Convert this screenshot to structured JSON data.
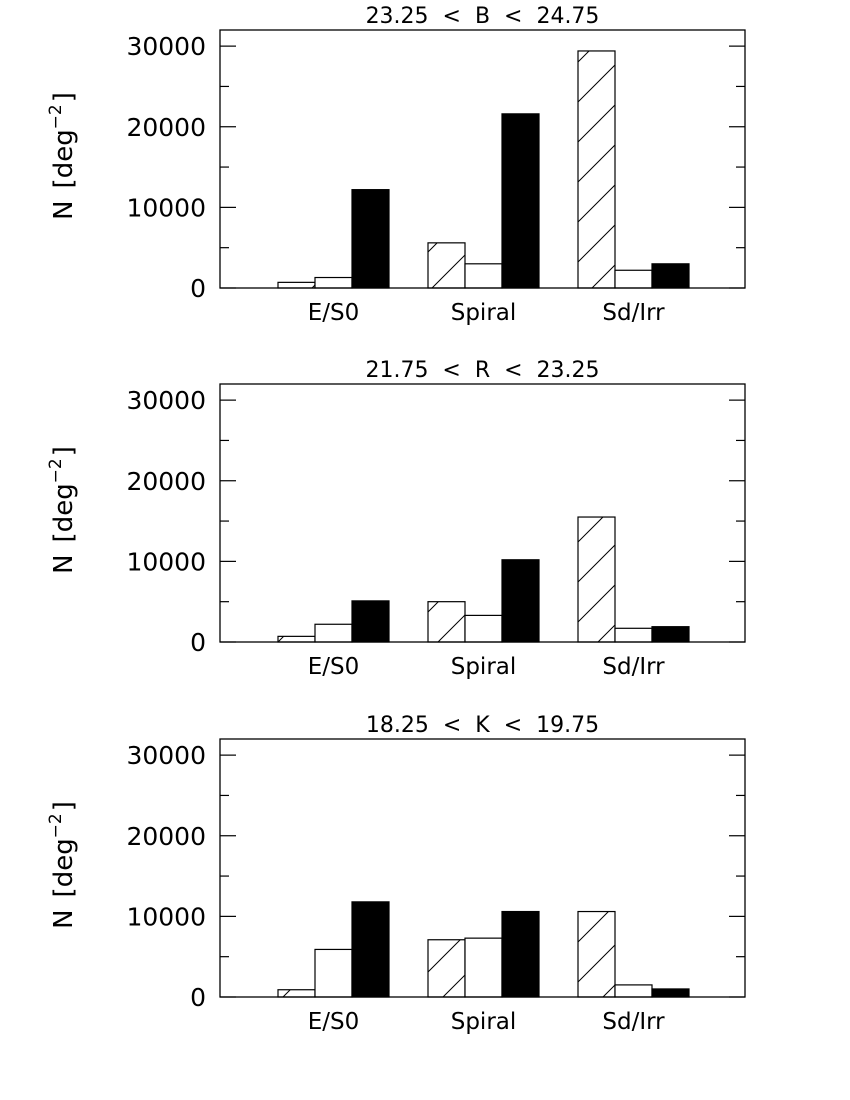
{
  "chart_data": [
    {
      "type": "bar",
      "title": "23.25  <  B  <  24.75",
      "ylabel_main": "N",
      "ylabel_unit_open": "[deg",
      "ylabel_exponent": "−2",
      "ylabel_unit_close": "]",
      "ylim": [
        0,
        32000
      ],
      "yticks_major": [
        0,
        10000,
        20000,
        30000
      ],
      "categories": [
        "E/S0",
        "Spiral",
        "Sd/Irr"
      ],
      "series": [
        {
          "fill": "hatched",
          "values": [
            700,
            5600,
            29400
          ]
        },
        {
          "fill": "open",
          "values": [
            1300,
            3000,
            2200
          ]
        },
        {
          "fill": "solid",
          "values": [
            12200,
            21600,
            3000
          ]
        }
      ]
    },
    {
      "type": "bar",
      "title": "21.75  <  R  <  23.25",
      "ylabel_main": "N",
      "ylabel_unit_open": "[deg",
      "ylabel_exponent": "−2",
      "ylabel_unit_close": "]",
      "ylim": [
        0,
        32000
      ],
      "yticks_major": [
        0,
        10000,
        20000,
        30000
      ],
      "categories": [
        "E/S0",
        "Spiral",
        "Sd/Irr"
      ],
      "series": [
        {
          "fill": "hatched",
          "values": [
            700,
            5000,
            15500
          ]
        },
        {
          "fill": "open",
          "values": [
            2200,
            3300,
            1700
          ]
        },
        {
          "fill": "solid",
          "values": [
            5100,
            10200,
            1900
          ]
        }
      ]
    },
    {
      "type": "bar",
      "title": "18.25  <  K  <  19.75",
      "ylabel_main": "N",
      "ylabel_unit_open": "[deg",
      "ylabel_exponent": "−2",
      "ylabel_unit_close": "]",
      "ylim": [
        0,
        32000
      ],
      "yticks_major": [
        0,
        10000,
        20000,
        30000
      ],
      "categories": [
        "E/S0",
        "Spiral",
        "Sd/Irr"
      ],
      "series": [
        {
          "fill": "hatched",
          "values": [
            900,
            7100,
            10600
          ]
        },
        {
          "fill": "open",
          "values": [
            5900,
            7300,
            1500
          ]
        },
        {
          "fill": "solid",
          "values": [
            11800,
            10600,
            1000
          ]
        }
      ]
    }
  ],
  "colors": {
    "ink": "#000000",
    "background": "#ffffff"
  }
}
